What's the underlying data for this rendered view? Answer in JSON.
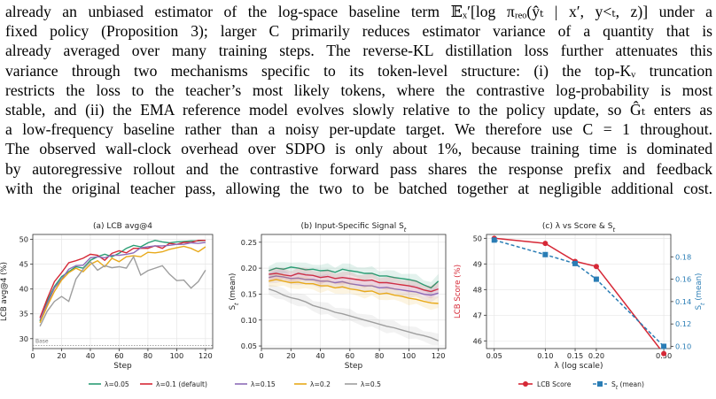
{
  "paragraph": {
    "lines": [
      "already an unbiased estimator of the log-space baseline term 𝔼ₓ′[log πᵣₑₒ(ŷₜ | x′, y<ₜ, z)] under a",
      "fixed policy (Proposition 3); larger C primarily reduces estimator variance of a quantity that is",
      "already averaged over many training steps. The reverse-KL distillation loss further attenuates this",
      "variance through two mechanisms specific to its token-level structure: (i) the top-Kᵥ truncation",
      "restricts the loss to the teacher’s most likely tokens, where the contrastive log-probability is most",
      "stable, and (ii) the EMA reference model evolves slowly relative to the policy update, so Ĝₜ enters as",
      "a low-frequency baseline rather than a noisy per-update target. We therefore use C = 1 throughout.",
      "The observed wall-clock overhead over SDPO is only about 1%, because training time is dominated",
      "by autoregressive rollout and the contrastive forward pass shares the response prefix and feedback",
      "with the original teacher pass, allowing the two to be batched together at negligible additional cost."
    ]
  },
  "colors": {
    "l005": "#2a9d74",
    "l01": "#d62836",
    "l015": "#8e6db8",
    "l02": "#e8a91a",
    "l05": "#9e9e9e",
    "score": "#d62836",
    "signal": "#2a7db5"
  },
  "chart_data": [
    {
      "type": "line",
      "title": "(a) LCB avg@4",
      "xlabel": "Step",
      "ylabel": "LCB avg@4 (%)",
      "xlim": [
        0,
        125
      ],
      "ylim": [
        28,
        51
      ],
      "xticks": [
        "0",
        "20",
        "40",
        "60",
        "80",
        "100",
        "120"
      ],
      "yticks": [
        "30",
        "35",
        "40",
        "45",
        "50"
      ],
      "annotation": "Base",
      "baseline": 28.6,
      "series": [
        {
          "name": "λ=0.05",
          "key": "l005",
          "x": [
            5,
            10,
            15,
            20,
            25,
            30,
            35,
            40,
            45,
            50,
            55,
            60,
            65,
            70,
            75,
            80,
            85,
            90,
            95,
            100,
            105,
            110,
            115,
            120
          ],
          "y": [
            33.5,
            37.5,
            40.5,
            42.5,
            43.5,
            44.5,
            44.2,
            45.8,
            46.5,
            47,
            46.5,
            47.2,
            48.2,
            48.8,
            48.5,
            49.3,
            49.8,
            49.5,
            49.3,
            49.5,
            49.6,
            49.7,
            49.7,
            49.8
          ]
        },
        {
          "name": "λ=0.1 (default)",
          "key": "l01",
          "x": [
            5,
            10,
            15,
            20,
            25,
            30,
            35,
            40,
            45,
            50,
            55,
            60,
            65,
            70,
            75,
            80,
            85,
            90,
            95,
            100,
            105,
            110,
            115,
            120
          ],
          "y": [
            34.2,
            38,
            41.5,
            43.3,
            45.3,
            45.7,
            46.2,
            47,
            46.8,
            45.8,
            47.2,
            47.7,
            47.3,
            48.2,
            48.2,
            48.2,
            48.7,
            48.2,
            49.2,
            49,
            49.4,
            49.4,
            49.8,
            49.8
          ]
        },
        {
          "name": "λ=0.15",
          "key": "l015",
          "x": [
            5,
            10,
            15,
            20,
            25,
            30,
            35,
            40,
            45,
            50,
            55,
            60,
            65,
            70,
            75,
            80,
            85,
            90,
            95,
            100,
            105,
            110,
            115,
            120
          ],
          "y": [
            33.8,
            37,
            40.2,
            42,
            44,
            44.7,
            44.8,
            46.3,
            46.5,
            46.3,
            46.8,
            46.8,
            47,
            47.3,
            48.3,
            48.5,
            48.7,
            48.7,
            48.8,
            49,
            49,
            49.3,
            49.2,
            49.4
          ]
        },
        {
          "name": "λ=0.2",
          "key": "l02",
          "x": [
            5,
            10,
            15,
            20,
            25,
            30,
            35,
            40,
            45,
            50,
            55,
            60,
            65,
            70,
            75,
            80,
            85,
            90,
            95,
            100,
            105,
            110,
            115,
            120
          ],
          "y": [
            33.2,
            36.5,
            39.5,
            41.8,
            43.3,
            44.2,
            43.5,
            45,
            45.7,
            44.5,
            46.2,
            45.5,
            46.5,
            46.7,
            46.5,
            47.4,
            47.3,
            47.5,
            48,
            48.3,
            48.6,
            48.2,
            47.5,
            48.5
          ]
        },
        {
          "name": "λ=0.5",
          "key": "l05",
          "x": [
            5,
            10,
            15,
            20,
            25,
            30,
            35,
            40,
            45,
            50,
            55,
            60,
            65,
            70,
            75,
            80,
            85,
            90,
            95,
            100,
            105,
            110,
            115,
            120
          ],
          "y": [
            32.5,
            35.5,
            37.5,
            38.5,
            37.5,
            42,
            44,
            45.5,
            43.8,
            44.7,
            44.3,
            44.5,
            44.2,
            46.5,
            42.8,
            43.7,
            44.2,
            44.7,
            43,
            41.7,
            41.8,
            40.2,
            41.5,
            43.8
          ]
        }
      ]
    },
    {
      "type": "line",
      "title": "(b) Input-Specific Signal S",
      "title_sub": "t",
      "xlabel": "Step",
      "ylabel": "S",
      "ylabel_sub": "t",
      "ylabel_suffix": " (mean)",
      "xlim": [
        0,
        125
      ],
      "ylim": [
        0.045,
        0.265
      ],
      "xticks": [
        "0",
        "20",
        "40",
        "60",
        "80",
        "100",
        "120"
      ],
      "yticks": [
        "0.05",
        "0.10",
        "0.15",
        "0.20",
        "0.25"
      ],
      "series": [
        {
          "name": "λ=0.05",
          "key": "l005",
          "x": [
            5,
            10,
            15,
            20,
            25,
            30,
            35,
            40,
            45,
            50,
            55,
            60,
            65,
            70,
            75,
            80,
            85,
            90,
            95,
            100,
            105,
            110,
            115,
            120
          ],
          "y": [
            0.195,
            0.2,
            0.198,
            0.202,
            0.2,
            0.197,
            0.198,
            0.195,
            0.196,
            0.192,
            0.198,
            0.195,
            0.193,
            0.19,
            0.19,
            0.185,
            0.185,
            0.182,
            0.18,
            0.178,
            0.175,
            0.168,
            0.162,
            0.175
          ]
        },
        {
          "name": "λ=0.1 (default)",
          "key": "l01",
          "x": [
            5,
            10,
            15,
            20,
            25,
            30,
            35,
            40,
            45,
            50,
            55,
            60,
            65,
            70,
            75,
            80,
            85,
            90,
            95,
            100,
            105,
            110,
            115,
            120
          ],
          "y": [
            0.188,
            0.19,
            0.187,
            0.185,
            0.19,
            0.187,
            0.186,
            0.182,
            0.184,
            0.18,
            0.182,
            0.18,
            0.178,
            0.176,
            0.177,
            0.172,
            0.172,
            0.17,
            0.168,
            0.166,
            0.163,
            0.158,
            0.155,
            0.16
          ]
        },
        {
          "name": "λ=0.15",
          "key": "l015",
          "x": [
            5,
            10,
            15,
            20,
            25,
            30,
            35,
            40,
            45,
            50,
            55,
            60,
            65,
            70,
            75,
            80,
            85,
            90,
            95,
            100,
            105,
            110,
            115,
            120
          ],
          "y": [
            0.182,
            0.185,
            0.183,
            0.18,
            0.181,
            0.178,
            0.178,
            0.175,
            0.175,
            0.172,
            0.174,
            0.17,
            0.168,
            0.166,
            0.166,
            0.162,
            0.163,
            0.16,
            0.158,
            0.156,
            0.154,
            0.15,
            0.148,
            0.152
          ]
        },
        {
          "name": "λ=0.2",
          "key": "l02",
          "x": [
            5,
            10,
            15,
            20,
            25,
            30,
            35,
            40,
            45,
            50,
            55,
            60,
            65,
            70,
            75,
            80,
            85,
            90,
            95,
            100,
            105,
            110,
            115,
            120
          ],
          "y": [
            0.175,
            0.178,
            0.175,
            0.172,
            0.173,
            0.17,
            0.17,
            0.166,
            0.166,
            0.162,
            0.164,
            0.16,
            0.158,
            0.155,
            0.156,
            0.15,
            0.152,
            0.148,
            0.146,
            0.142,
            0.14,
            0.136,
            0.133,
            0.132
          ]
        },
        {
          "name": "λ=0.5",
          "key": "l05",
          "x": [
            5,
            10,
            15,
            20,
            25,
            30,
            35,
            40,
            45,
            50,
            55,
            60,
            65,
            70,
            75,
            80,
            85,
            90,
            95,
            100,
            105,
            110,
            115,
            120
          ],
          "y": [
            0.16,
            0.155,
            0.148,
            0.143,
            0.14,
            0.135,
            0.128,
            0.124,
            0.12,
            0.115,
            0.112,
            0.108,
            0.104,
            0.1,
            0.096,
            0.092,
            0.088,
            0.085,
            0.081,
            0.077,
            0.073,
            0.07,
            0.066,
            0.06
          ]
        }
      ]
    },
    {
      "type": "line",
      "title": "(c) λ vs Score & S",
      "title_sub": "t",
      "xlabel": "λ (log scale)",
      "ylabel": "LCB Score (%)",
      "ylabel_right": "S",
      "ylabel_right_sub": "t",
      "ylabel_right_suffix": " (mean)",
      "xscale": "log",
      "xlim": [
        0.045,
        0.55
      ],
      "ylim": [
        45.7,
        50.15
      ],
      "ylim_right": [
        0.098,
        0.2
      ],
      "xticks": [
        "0.05",
        "0.10",
        "0.15",
        "0.20",
        "0.50"
      ],
      "yticks": [
        "46",
        "47",
        "48",
        "49",
        "50"
      ],
      "yticks_right": [
        "0.10",
        "0.12",
        "0.14",
        "0.16",
        "0.18"
      ],
      "series": [
        {
          "name": "LCB Score",
          "key": "score",
          "axis": "left",
          "x": [
            0.05,
            0.1,
            0.15,
            0.2,
            0.5
          ],
          "y": [
            50.0,
            49.8,
            49.1,
            48.9,
            45.5
          ]
        },
        {
          "name": "S",
          "name_sub": "t",
          "name_suffix": " (mean)",
          "key": "signal",
          "axis": "right",
          "x": [
            0.05,
            0.1,
            0.15,
            0.2,
            0.5
          ],
          "y": [
            0.195,
            0.182,
            0.174,
            0.16,
            0.1
          ]
        }
      ]
    }
  ]
}
